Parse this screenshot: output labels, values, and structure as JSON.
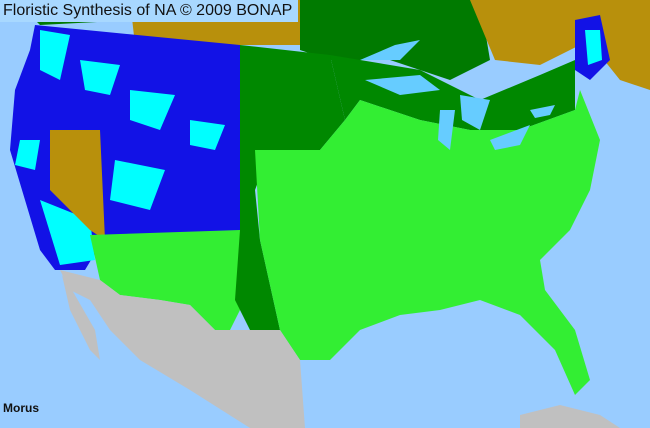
{
  "title": "Floristic Synthesis of NA © 2009 BONAP",
  "genus": "Morus",
  "colors": {
    "ocean": "#99ccff",
    "lakes": "#66ccff",
    "canada_present": "#007a00",
    "not_present_region": "#b8900c",
    "mexico": "#c0c0c0",
    "native_species": "#33ee33",
    "native_and_exotic": "#008800",
    "exotic_only": "#1212e6",
    "exotic_noxious": "#00ffff",
    "borders": "#333333"
  }
}
